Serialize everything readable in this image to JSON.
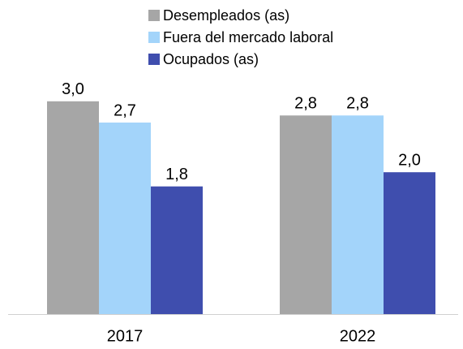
{
  "chart_data": {
    "type": "bar",
    "categories": [
      "2017",
      "2022"
    ],
    "series": [
      {
        "name": "Desempleados (as)",
        "color": "#a6a6a6",
        "values": [
          3.0,
          2.8
        ],
        "value_labels": [
          "3,0",
          "2,8"
        ]
      },
      {
        "name": "Fuera del mercado laboral",
        "color": "#a3d4fa",
        "values": [
          2.7,
          2.8
        ],
        "value_labels": [
          "2,7",
          "2,8"
        ]
      },
      {
        "name": "Ocupados (as)",
        "color": "#3f4eae",
        "values": [
          1.8,
          2.0
        ],
        "value_labels": [
          "1,8",
          "2,0"
        ]
      }
    ],
    "legend": "top"
  }
}
